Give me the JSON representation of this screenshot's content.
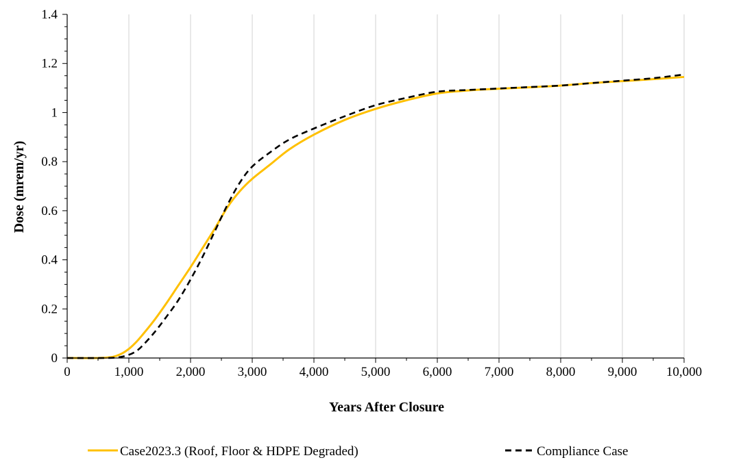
{
  "chart_data": {
    "type": "line",
    "xlabel": "Years After Closure",
    "ylabel": "Dose (mrem/yr)",
    "xlim": [
      0,
      10000
    ],
    "ylim": [
      0,
      1.4
    ],
    "x_ticks": [
      0,
      1000,
      2000,
      3000,
      4000,
      5000,
      6000,
      7000,
      8000,
      9000,
      10000
    ],
    "x_tick_labels": [
      "0",
      "1,000",
      "2,000",
      "3,000",
      "4,000",
      "5,000",
      "6,000",
      "7,000",
      "8,000",
      "9,000",
      "10,000"
    ],
    "y_ticks": [
      0,
      0.2,
      0.4,
      0.6,
      0.8,
      1.0,
      1.2,
      1.4
    ],
    "y_tick_labels": [
      "0",
      "0.2",
      "0.4",
      "0.6",
      "0.8",
      "1",
      "1.2",
      "1.4"
    ],
    "grid": "vertical",
    "legend_position": "bottom",
    "series": [
      {
        "name": "Case2023.3 (Roof, Floor & HDPE Degraded)",
        "color": "#FFC000",
        "style": "solid",
        "x": [
          0,
          500,
          700,
          800,
          900,
          1000,
          1100,
          1200,
          1400,
          1600,
          1800,
          2000,
          2200,
          2400,
          2600,
          2800,
          3000,
          3300,
          3600,
          4000,
          4500,
          5000,
          5500,
          6000,
          6500,
          7000,
          7500,
          8000,
          8500,
          9000,
          9500,
          10000
        ],
        "y": [
          0,
          0,
          0.003,
          0.009,
          0.02,
          0.037,
          0.06,
          0.088,
          0.15,
          0.22,
          0.295,
          0.37,
          0.45,
          0.53,
          0.615,
          0.68,
          0.73,
          0.79,
          0.85,
          0.91,
          0.97,
          1.015,
          1.05,
          1.078,
          1.09,
          1.097,
          1.103,
          1.11,
          1.12,
          1.128,
          1.136,
          1.145
        ]
      },
      {
        "name": "Compliance Case",
        "color": "#000000",
        "style": "dashed",
        "x": [
          0,
          600,
          800,
          900,
          1000,
          1100,
          1200,
          1400,
          1600,
          1800,
          2000,
          2200,
          2400,
          2600,
          2800,
          3000,
          3300,
          3600,
          4000,
          4500,
          5000,
          5500,
          6000,
          6500,
          7000,
          7500,
          8000,
          8500,
          9000,
          9500,
          10000
        ],
        "y": [
          0,
          0,
          0.002,
          0.006,
          0.013,
          0.025,
          0.045,
          0.1,
          0.165,
          0.235,
          0.32,
          0.415,
          0.52,
          0.625,
          0.715,
          0.78,
          0.84,
          0.89,
          0.935,
          0.985,
          1.03,
          1.06,
          1.085,
          1.092,
          1.098,
          1.104,
          1.11,
          1.12,
          1.13,
          1.14,
          1.155
        ]
      }
    ]
  }
}
